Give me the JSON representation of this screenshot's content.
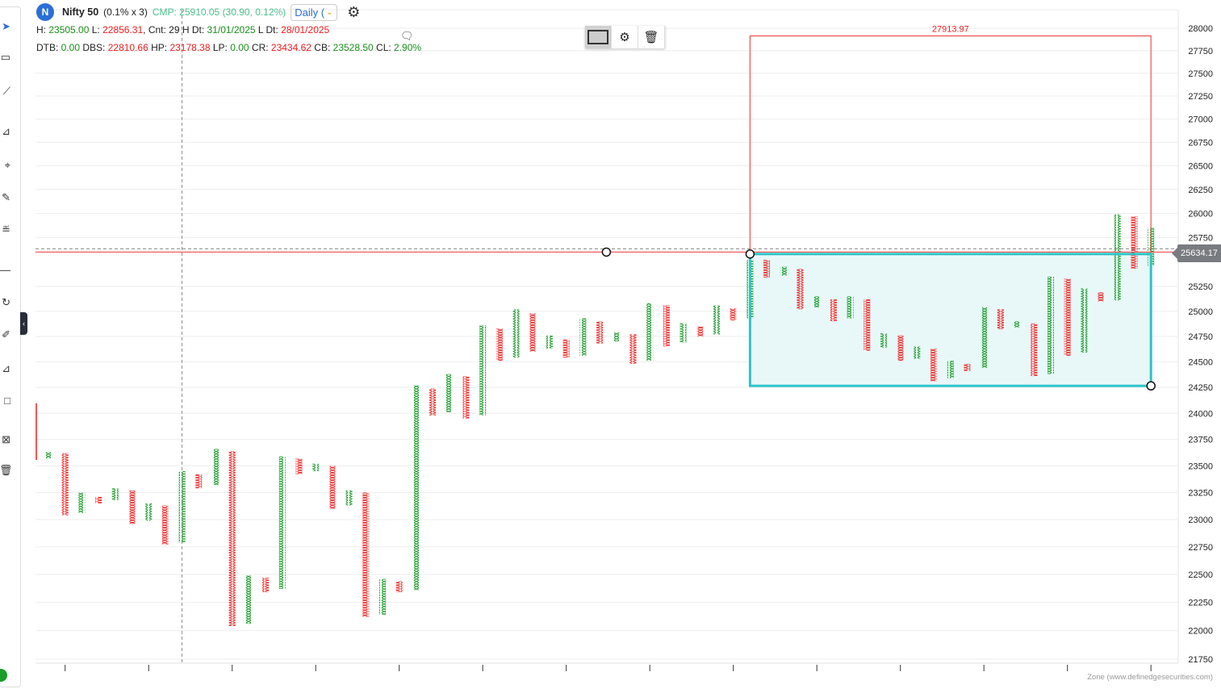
{
  "header": {
    "logo_letter": "N",
    "symbol": "Nifty 50",
    "box_setting": "(0.1% x 3)",
    "cmp": "CMP: 25910.05 (30.90, 0.12%)",
    "interval": "Daily (",
    "stats1": [
      {
        "t": "H: ",
        "c": ""
      },
      {
        "t": "23505.00",
        "c": "g"
      },
      {
        "t": " L: ",
        "c": ""
      },
      {
        "t": "22856.31",
        "c": "r"
      },
      {
        "t": ", Cnt: 29 H Dt: ",
        "c": ""
      },
      {
        "t": "31/01/2025",
        "c": "g"
      },
      {
        "t": " L Dt: ",
        "c": ""
      },
      {
        "t": "28/01/2025",
        "c": "r"
      }
    ],
    "stats2": [
      {
        "t": "DTB: ",
        "c": ""
      },
      {
        "t": "0.00",
        "c": "g"
      },
      {
        "t": " DBS: ",
        "c": ""
      },
      {
        "t": "22810.66",
        "c": "r"
      },
      {
        "t": " HP: ",
        "c": ""
      },
      {
        "t": "23178.38",
        "c": "r"
      },
      {
        "t": " LP: ",
        "c": ""
      },
      {
        "t": "0.00",
        "c": "g"
      },
      {
        "t": " CR: ",
        "c": ""
      },
      {
        "t": "23434.62",
        "c": "r"
      },
      {
        "t": " CB: ",
        "c": ""
      },
      {
        "t": "23528.50",
        "c": "g"
      },
      {
        "t": " CL: ",
        "c": ""
      },
      {
        "t": "2.90%",
        "c": "g"
      }
    ]
  },
  "drawing_toolbar": {
    "icons": [
      "rectangle-icon",
      "gear-icon",
      "trash-icon"
    ]
  },
  "price_label": "25634.17",
  "credit": "Zone (www.definedgesecurities.com)",
  "colors": {
    "x": "#1a9c2a",
    "o": "#f01c1c",
    "zone": "#2ec4c8",
    "zone_fill": "#e8f8f8",
    "target": "#f05050"
  },
  "chart_data": {
    "type": "point-and-figure",
    "yscale": "log",
    "ylim": [
      21750,
      28000
    ],
    "yticks": [
      28000,
      27750,
      27500,
      27250,
      27000,
      26750,
      26500,
      26250,
      26000,
      25750,
      25250,
      25000,
      24750,
      24500,
      24250,
      24000,
      23750,
      23500,
      23250,
      23000,
      22750,
      22500,
      22250,
      22000,
      21750
    ],
    "columns": [
      [
        "X",
        23630,
        23570
      ],
      [
        "O",
        23620,
        23040
      ],
      [
        "X",
        23250,
        23060
      ],
      [
        "O",
        23210,
        23150
      ],
      [
        "X",
        23290,
        23180
      ],
      [
        "O",
        23270,
        22960
      ],
      [
        "X",
        23150,
        22990
      ],
      [
        "O",
        23130,
        22770
      ],
      [
        "X",
        23450,
        22790
      ],
      [
        "O",
        23420,
        23290
      ],
      [
        "X",
        23660,
        23320
      ],
      [
        "O",
        23640,
        22040
      ],
      [
        "X",
        22490,
        22060
      ],
      [
        "O",
        22470,
        22340
      ],
      [
        "X",
        23590,
        22370
      ],
      [
        "O",
        23570,
        23420
      ],
      [
        "X",
        23520,
        23450
      ],
      [
        "O",
        23500,
        23100
      ],
      [
        "X",
        23270,
        23130
      ],
      [
        "O",
        23250,
        22120
      ],
      [
        "X",
        22460,
        22140
      ],
      [
        "O",
        22440,
        22340
      ],
      [
        "X",
        24270,
        22360
      ],
      [
        "O",
        24240,
        23980
      ],
      [
        "X",
        24380,
        24010
      ],
      [
        "O",
        24360,
        23950
      ],
      [
        "X",
        24860,
        23980
      ],
      [
        "O",
        24830,
        24510
      ],
      [
        "X",
        25020,
        24540
      ],
      [
        "O",
        24980,
        24600
      ],
      [
        "X",
        24760,
        24630
      ],
      [
        "O",
        24720,
        24540
      ],
      [
        "X",
        24930,
        24560
      ],
      [
        "O",
        24900,
        24680
      ],
      [
        "X",
        24790,
        24700
      ],
      [
        "O",
        24770,
        24480
      ],
      [
        "X",
        25080,
        24510
      ],
      [
        "O",
        25060,
        24650
      ],
      [
        "X",
        24880,
        24690
      ],
      [
        "O",
        24850,
        24750
      ],
      [
        "X",
        25060,
        24770
      ],
      [
        "O",
        25030,
        24910
      ],
      [
        "X",
        25520,
        24930
      ],
      [
        "O",
        25520,
        25340
      ],
      [
        "X",
        25450,
        25360
      ],
      [
        "O",
        25430,
        25020
      ],
      [
        "X",
        25150,
        25040
      ],
      [
        "O",
        25120,
        24900
      ],
      [
        "X",
        25150,
        24930
      ],
      [
        "O",
        25120,
        24610
      ],
      [
        "X",
        24780,
        24640
      ],
      [
        "O",
        24760,
        24510
      ],
      [
        "X",
        24650,
        24530
      ],
      [
        "O",
        24630,
        24310
      ],
      [
        "X",
        24510,
        24340
      ],
      [
        "O",
        24480,
        24410
      ],
      [
        "X",
        25040,
        24440
      ],
      [
        "O",
        25020,
        24820
      ],
      [
        "X",
        24900,
        24840
      ],
      [
        "O",
        24880,
        24360
      ],
      [
        "X",
        25350,
        24380
      ],
      [
        "O",
        25330,
        24560
      ],
      [
        "X",
        25230,
        24590
      ],
      [
        "O",
        25190,
        25100
      ],
      [
        "X",
        25990,
        25110
      ],
      [
        "O",
        25970,
        25430
      ],
      [
        "X",
        25850,
        25460
      ]
    ],
    "horizontal_line": 25600,
    "dashed_line": 25634.17,
    "zone": {
      "top": 25580,
      "bottom": 24265,
      "from_col": 42,
      "to_col": 66
    },
    "target": {
      "value": 27913.97,
      "label": "27913.97"
    },
    "cursor_col": 8,
    "handle_col": 33.4,
    "x_tick_cols": [
      1,
      6,
      11,
      16,
      21,
      26,
      31,
      36,
      41,
      46,
      51,
      56,
      61,
      66
    ]
  }
}
